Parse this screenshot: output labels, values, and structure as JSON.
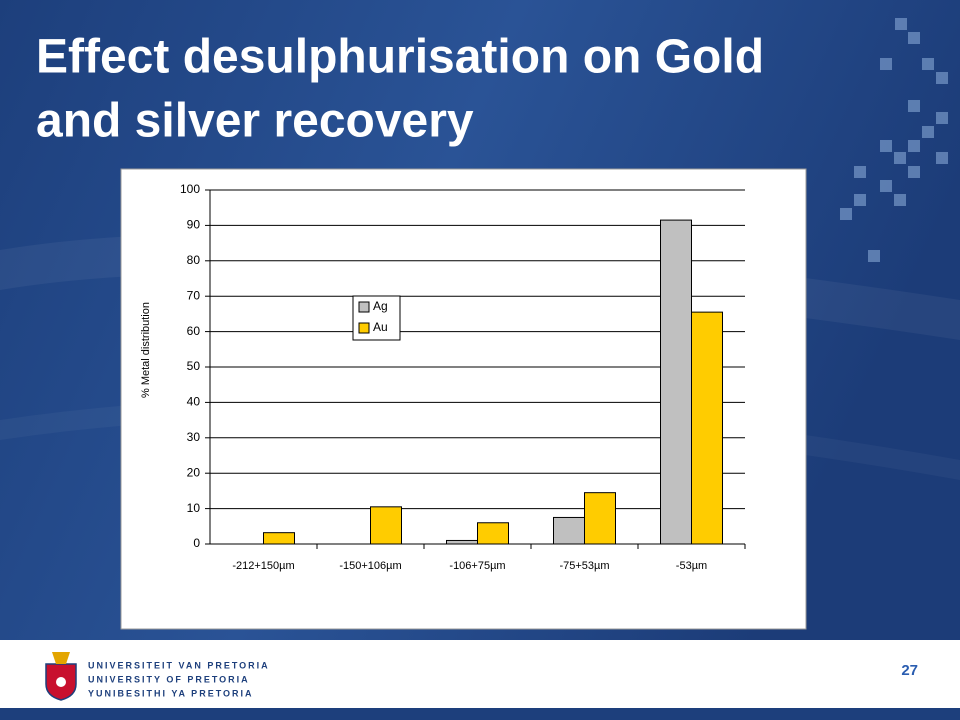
{
  "slide": {
    "title_lines": [
      "Effect desulphurisation on Gold",
      "and silver recovery"
    ],
    "university_lines": [
      "UNIVERSITEIT VAN PRETORIA",
      "UNIVERSITY OF PRETORIA",
      "YUNIBESITHI YA PRETORIA"
    ],
    "page_number": "27"
  },
  "chart_data": {
    "type": "bar",
    "ylabel": "% Metal distribution",
    "categories": [
      "-212+150µm",
      "-150+106µm",
      "-106+75µm",
      "-75+53µm",
      "-53µm"
    ],
    "series": [
      {
        "name": "Ag",
        "color": "#c0c0c0",
        "values": [
          0,
          0,
          1,
          7.5,
          91.5
        ]
      },
      {
        "name": "Au",
        "color": "#ffcc00",
        "values": [
          3.2,
          10.5,
          6,
          14.5,
          65.5
        ]
      }
    ],
    "ylim": [
      0,
      100
    ],
    "yticks": [
      0,
      10,
      20,
      30,
      40,
      50,
      60,
      70,
      80,
      90,
      100
    ],
    "grid": true
  }
}
